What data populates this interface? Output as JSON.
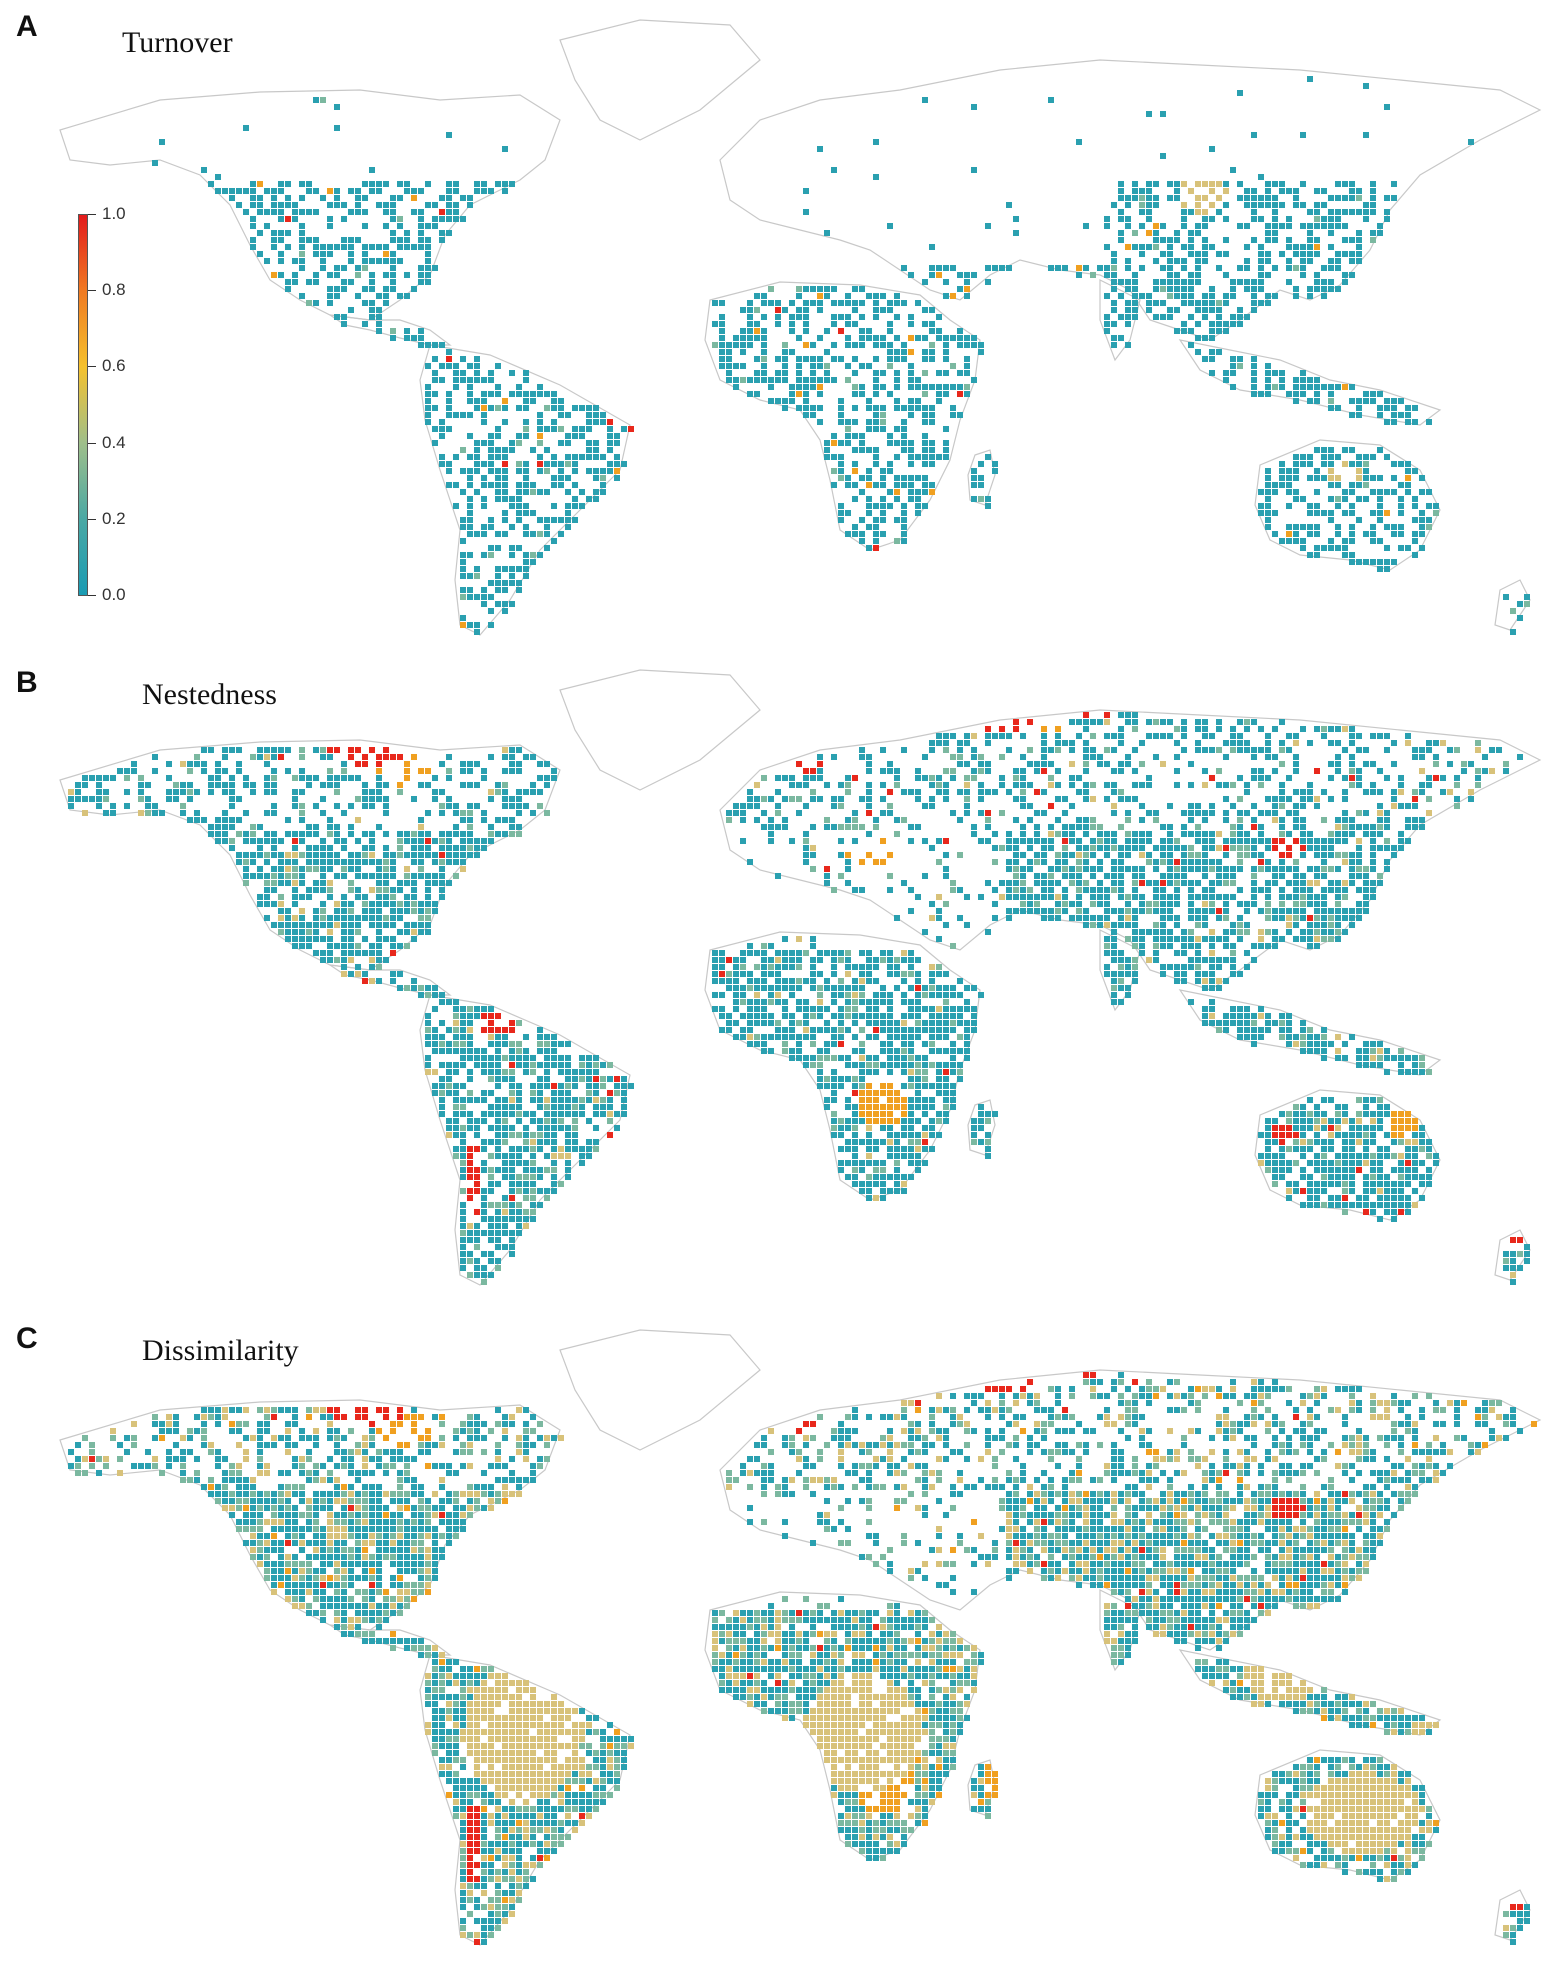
{
  "panels": [
    {
      "letter": "A",
      "title": "Turnover",
      "variant": "turnover"
    },
    {
      "letter": "B",
      "title": "Nestedness",
      "variant": "nestedness"
    },
    {
      "letter": "C",
      "title": "Dissimilarity",
      "variant": "dissimilarity"
    }
  ],
  "legend": {
    "ticks": [
      "1.0",
      "0.8",
      "0.6",
      "0.4",
      "0.2",
      "0.0"
    ],
    "colors": [
      "#e31a1c",
      "#f07a22",
      "#f5c12d",
      "#9fbf8a",
      "#4aa8a4",
      "#1a9bb3"
    ]
  },
  "colors": {
    "land_outline": "#c8c8c8",
    "low": "#2aa0b0",
    "mid_low": "#7bb8a0",
    "mid": "#d8c27a",
    "high": "#f0a020",
    "max": "#e8281c"
  }
}
